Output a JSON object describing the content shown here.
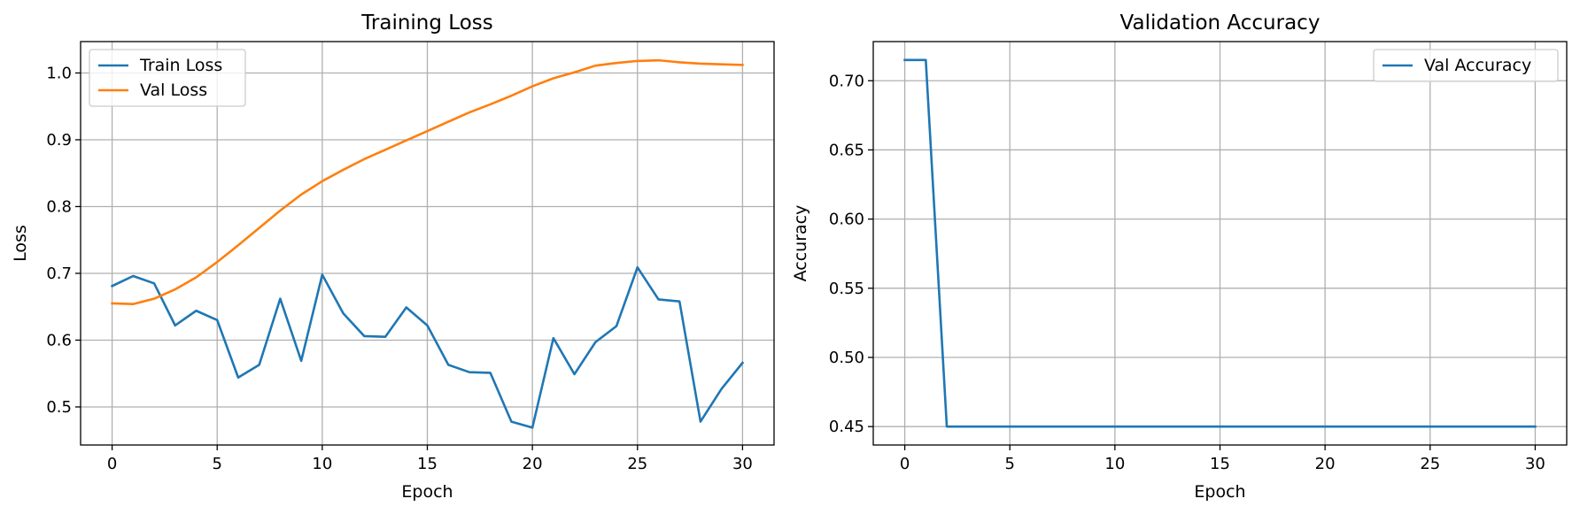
{
  "chart_data": [
    {
      "type": "line",
      "title": "Training Loss",
      "xlabel": "Epoch",
      "ylabel": "Loss",
      "xlim": [
        -1.5,
        31.5
      ],
      "ylim": [
        0.443,
        1.047
      ],
      "xticks": [
        0,
        5,
        10,
        15,
        20,
        25,
        30
      ],
      "yticks": [
        0.5,
        0.6,
        0.7,
        0.8,
        0.9,
        1.0
      ],
      "ytick_labels": [
        "0.5",
        "0.6",
        "0.7",
        "0.8",
        "0.9",
        "1.0"
      ],
      "grid": true,
      "legend_position": "top-left",
      "x": [
        0,
        1,
        2,
        3,
        4,
        5,
        6,
        7,
        8,
        9,
        10,
        11,
        12,
        13,
        14,
        15,
        16,
        17,
        18,
        19,
        20,
        21,
        22,
        23,
        24,
        25,
        26,
        27,
        28,
        29,
        30
      ],
      "series": [
        {
          "name": "Train Loss",
          "color": "#1f77b4",
          "values": [
            0.681,
            0.696,
            0.685,
            0.622,
            0.644,
            0.63,
            0.544,
            0.563,
            0.662,
            0.569,
            0.698,
            0.64,
            0.606,
            0.605,
            0.649,
            0.622,
            0.563,
            0.552,
            0.551,
            0.478,
            0.469,
            0.603,
            0.549,
            0.597,
            0.621,
            0.709,
            0.661,
            0.658,
            0.478,
            0.527,
            0.566
          ]
        },
        {
          "name": "Val Loss",
          "color": "#ff7f0e",
          "values": [
            0.655,
            0.654,
            0.662,
            0.676,
            0.694,
            0.717,
            0.742,
            0.768,
            0.794,
            0.818,
            0.838,
            0.855,
            0.871,
            0.885,
            0.899,
            0.913,
            0.927,
            0.941,
            0.953,
            0.966,
            0.98,
            0.992,
            1.001,
            1.011,
            1.015,
            1.018,
            1.019,
            1.016,
            1.014,
            1.013,
            1.012
          ]
        }
      ]
    },
    {
      "type": "line",
      "title": "Validation Accuracy",
      "xlabel": "Epoch",
      "ylabel": "Accuracy",
      "xlim": [
        -1.5,
        31.5
      ],
      "ylim": [
        0.4367,
        0.7283
      ],
      "xticks": [
        0,
        5,
        10,
        15,
        20,
        25,
        30
      ],
      "yticks": [
        0.45,
        0.5,
        0.55,
        0.6,
        0.65,
        0.7
      ],
      "ytick_labels": [
        "0.45",
        "0.50",
        "0.55",
        "0.60",
        "0.65",
        "0.70"
      ],
      "grid": true,
      "legend_position": "top-right",
      "x": [
        0,
        1,
        2,
        3,
        4,
        5,
        6,
        7,
        8,
        9,
        10,
        11,
        12,
        13,
        14,
        15,
        16,
        17,
        18,
        19,
        20,
        21,
        22,
        23,
        24,
        25,
        26,
        27,
        28,
        29,
        30
      ],
      "series": [
        {
          "name": "Val Accuracy",
          "color": "#1f77b4",
          "values": [
            0.715,
            0.715,
            0.45,
            0.45,
            0.45,
            0.45,
            0.45,
            0.45,
            0.45,
            0.45,
            0.45,
            0.45,
            0.45,
            0.45,
            0.45,
            0.45,
            0.45,
            0.45,
            0.45,
            0.45,
            0.45,
            0.45,
            0.45,
            0.45,
            0.45,
            0.45,
            0.45,
            0.45,
            0.45,
            0.45,
            0.45
          ]
        }
      ]
    }
  ]
}
